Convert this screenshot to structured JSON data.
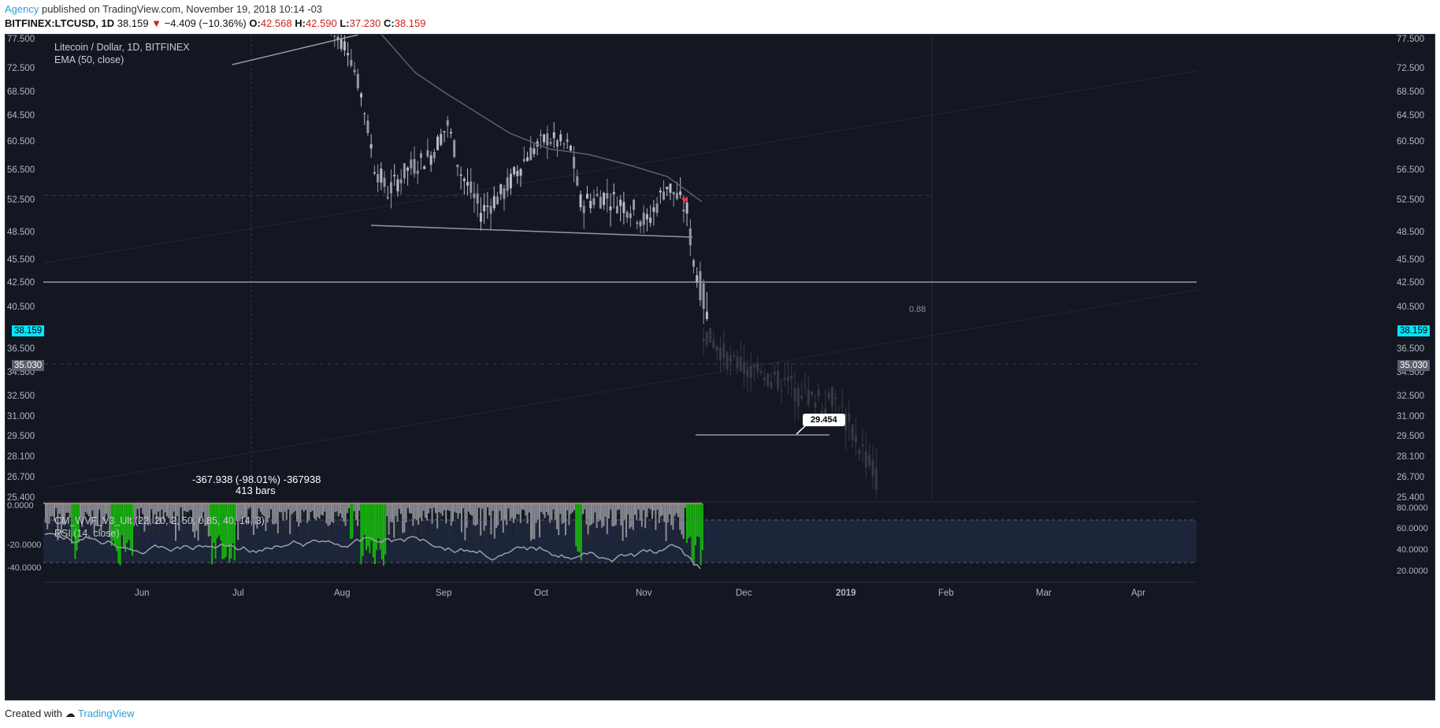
{
  "header": {
    "author": "Agency",
    "published_text": " published on TradingView.com, November 19, 2018 10:14 -03",
    "symbol": "BITFINEX:LTCUSD, 1D",
    "last": "38.159",
    "arrow": "▼",
    "change": "−4.409 (−10.36%)",
    "o_label": "O:",
    "o_val": "42.568",
    "h_label": "H:",
    "h_val": "42.590",
    "l_label": "L:",
    "l_val": "37.230",
    "c_label": "C:",
    "c_val": "38.159"
  },
  "legend": {
    "title": "Litecoin / Dollar, 1D, BITFINEX",
    "ema": "EMA (50, close)",
    "wvf": "CM_WVF_V3_Ult (22, 20, 2, 50, 0.85, 40, 14, 3)",
    "rsi": "RSI (14, close)"
  },
  "tags": {
    "price_left": "38.159",
    "price_right": "38.159",
    "level_left": "35.030",
    "level_right": "35.030"
  },
  "annotations": {
    "measure_line1": "-367.938 (-98.01%) -367938",
    "measure_line2": "413 bars",
    "callout": "29.454",
    "ratio": "0.88"
  },
  "footer": {
    "created": "Created with",
    "brand": "TradingView"
  },
  "colors": {
    "background": "#131722",
    "candle_up": "#9598a1",
    "candle_down": "#b9bcc4",
    "ghost_candle": "#363a45",
    "ema": "#5d606b",
    "wvf_gray": "#8a8d94",
    "wvf_black": "#1c1f26",
    "wvf_green": "#17b40e",
    "rsi_line": "#9da0a8",
    "rsi_band": "#1c2539",
    "price_tag": "#00e5ff",
    "level_tag": "#5d606b"
  },
  "chart_data": {
    "type": "candlestick",
    "symbol": "Litecoin / Dollar, 1D, BITFINEX",
    "y_ticks": [
      "77.500",
      "72.500",
      "68.500",
      "64.500",
      "60.500",
      "56.500",
      "52.500",
      "48.500",
      "45.500",
      "42.500",
      "40.500",
      "36.500",
      "34.500",
      "32.500",
      "31.000",
      "29.500",
      "28.100",
      "26.700",
      "25.400"
    ],
    "x_ticks": [
      "Jun",
      "Jul",
      "Aug",
      "Sep",
      "Oct",
      "Nov",
      "Dec",
      "2019",
      "Feb",
      "Mar",
      "Apr"
    ],
    "approx_close_path": [
      {
        "date": "2018-07-28",
        "close": 78.5
      },
      {
        "date": "2018-08-02",
        "close": 76.0
      },
      {
        "date": "2018-08-06",
        "close": 68.0
      },
      {
        "date": "2018-08-10",
        "close": 57.0
      },
      {
        "date": "2018-08-14",
        "close": 53.5
      },
      {
        "date": "2018-08-20",
        "close": 56.5
      },
      {
        "date": "2018-08-27",
        "close": 58.5
      },
      {
        "date": "2018-09-01",
        "close": 63.0
      },
      {
        "date": "2018-09-05",
        "close": 56.0
      },
      {
        "date": "2018-09-11",
        "close": 51.0
      },
      {
        "date": "2018-09-18",
        "close": 53.5
      },
      {
        "date": "2018-09-25",
        "close": 58.5
      },
      {
        "date": "2018-10-01",
        "close": 61.0
      },
      {
        "date": "2018-10-08",
        "close": 59.5
      },
      {
        "date": "2018-10-11",
        "close": 52.0
      },
      {
        "date": "2018-10-18",
        "close": 53.0
      },
      {
        "date": "2018-10-26",
        "close": 51.5
      },
      {
        "date": "2018-10-31",
        "close": 49.5
      },
      {
        "date": "2018-11-06",
        "close": 54.5
      },
      {
        "date": "2018-11-12",
        "close": 51.0
      },
      {
        "date": "2018-11-14",
        "close": 45.0
      },
      {
        "date": "2018-11-16",
        "close": 42.5
      },
      {
        "date": "2018-11-19",
        "close": 38.159
      }
    ],
    "horizontal_level": 42.5,
    "support_line_level": 48.5,
    "projection_low": 29.454
  }
}
